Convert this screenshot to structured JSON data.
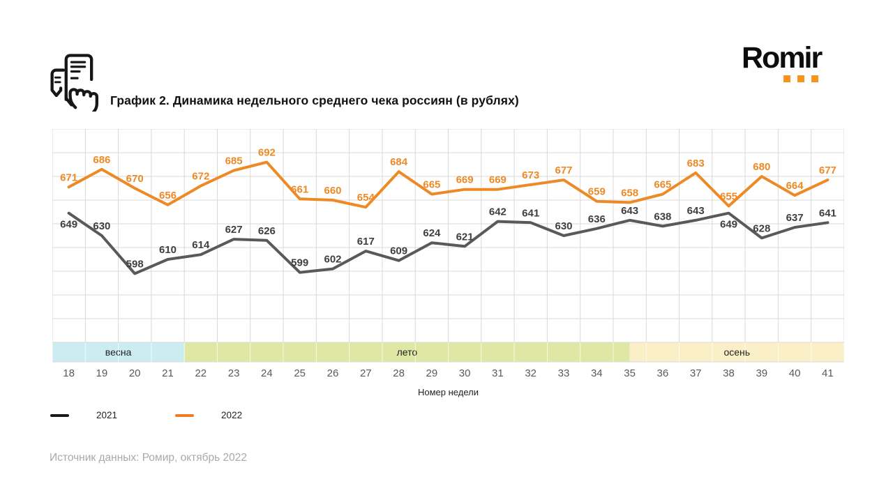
{
  "header": {
    "title": "График 2. Динамика недельного среднего чека россиян (в рублях)",
    "logo_text": "Romir",
    "icon": "receipt-in-hand-icon"
  },
  "colors": {
    "line_2021": "#595959",
    "line_2022": "#ED8A26",
    "label_2021": "#3F3F3F",
    "label_2022": "#ED8A26",
    "grid": "#D9D9D9",
    "band_spring": "#CBEDF2",
    "band_summer": "#DEE7A4",
    "band_autumn": "#FAEFC7",
    "accent_orange": "#F7941D",
    "week_text": "#595959",
    "source_text": "#A9A9A9"
  },
  "chart_data": {
    "type": "line",
    "title": "График 2. Динамика недельного среднего чека россиян (в рублях)",
    "xlabel": "Номер недели",
    "ylabel": "",
    "ylim": [
      540,
      720
    ],
    "grid_step_y": 20,
    "grid": true,
    "x": [
      18,
      19,
      20,
      21,
      22,
      23,
      24,
      25,
      26,
      27,
      28,
      29,
      30,
      31,
      32,
      33,
      34,
      35,
      36,
      37,
      38,
      39,
      40,
      41
    ],
    "series": [
      {
        "name": "2021",
        "color": "#595959",
        "label_color": "#3F3F3F",
        "values": [
          649,
          630,
          598,
          610,
          614,
          627,
          626,
          599,
          602,
          617,
          609,
          624,
          621,
          642,
          641,
          630,
          636,
          643,
          638,
          643,
          649,
          628,
          637,
          641
        ],
        "labels_below": [
          18,
          38
        ]
      },
      {
        "name": "2022",
        "color": "#ED8A26",
        "label_color": "#ED8A26",
        "values": [
          671,
          686,
          670,
          656,
          672,
          685,
          692,
          661,
          660,
          654,
          684,
          665,
          669,
          669,
          673,
          677,
          659,
          658,
          665,
          683,
          655,
          680,
          664,
          677
        ],
        "labels_below": []
      }
    ],
    "season_bands": [
      {
        "label": "весна",
        "color": "#CBEDF2",
        "span_cells": 4
      },
      {
        "label": "лето",
        "color": "#DEE7A4",
        "span_cells": 13.5
      },
      {
        "label": "осень",
        "color": "#FAEFC7",
        "span_cells": 6.5
      }
    ],
    "legend": [
      {
        "label": "2021",
        "swatch_color": "#1A1A1A"
      },
      {
        "label": "2022",
        "swatch_color": "#ED7D28"
      }
    ],
    "legend_position": "bottom-left"
  },
  "source": "Источник данных: Ромир, октябрь 2022"
}
